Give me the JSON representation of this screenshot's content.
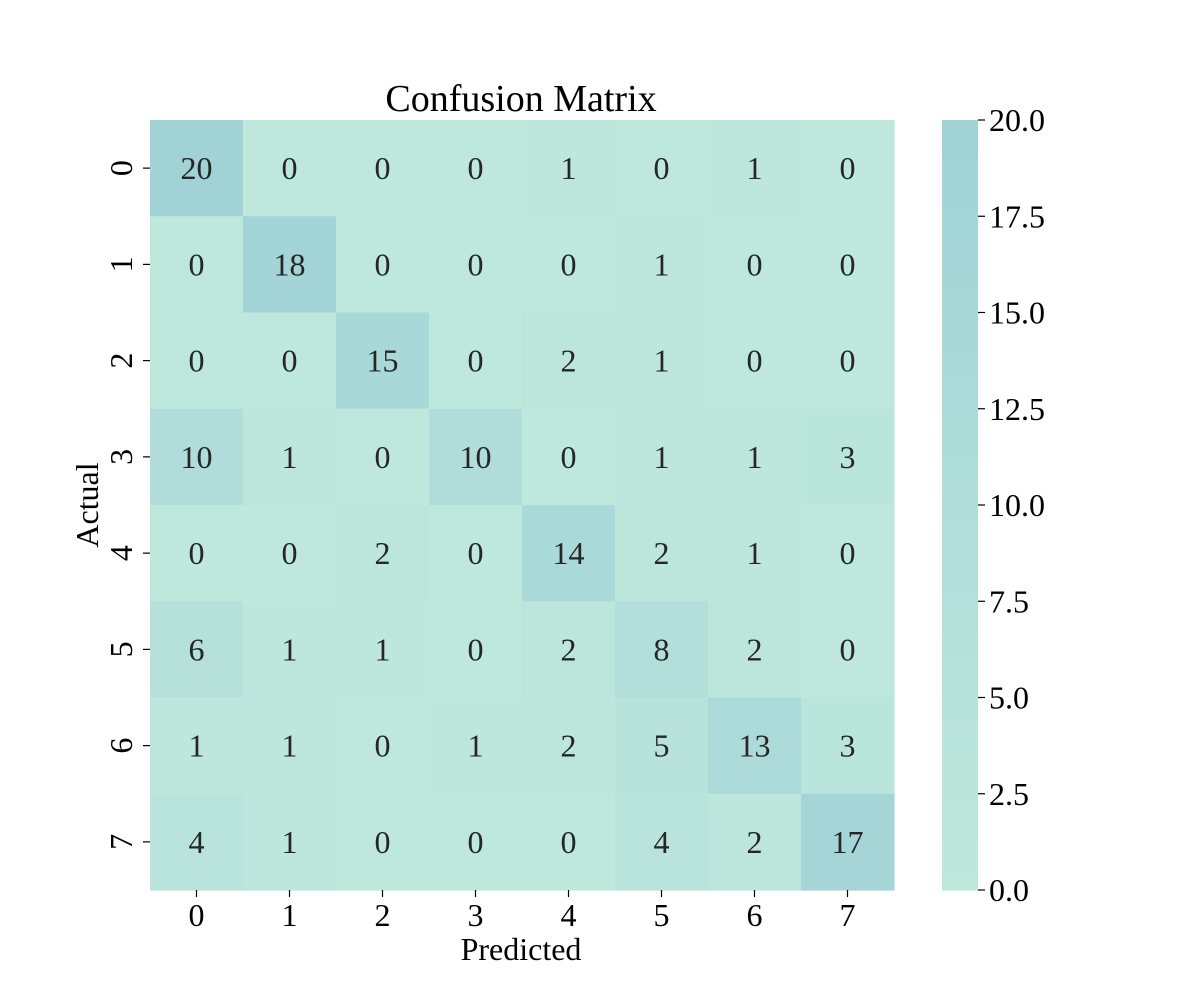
{
  "chart_data": {
    "type": "heatmap",
    "title": "Confusion Matrix",
    "xlabel": "Predicted",
    "ylabel": "Actual",
    "x_categories": [
      "0",
      "1",
      "2",
      "3",
      "4",
      "5",
      "6",
      "7"
    ],
    "y_categories": [
      "0",
      "1",
      "2",
      "3",
      "4",
      "5",
      "6",
      "7"
    ],
    "values": [
      [
        20,
        0,
        0,
        0,
        1,
        0,
        1,
        0
      ],
      [
        0,
        18,
        0,
        0,
        0,
        1,
        0,
        0
      ],
      [
        0,
        0,
        15,
        0,
        2,
        1,
        0,
        0
      ],
      [
        10,
        1,
        0,
        10,
        0,
        1,
        1,
        3
      ],
      [
        0,
        0,
        2,
        0,
        14,
        2,
        1,
        0
      ],
      [
        6,
        1,
        1,
        0,
        2,
        8,
        2,
        0
      ],
      [
        1,
        1,
        0,
        1,
        2,
        5,
        13,
        3
      ],
      [
        4,
        1,
        0,
        0,
        0,
        4,
        2,
        17
      ]
    ],
    "colorbar": {
      "min": 0,
      "max": 20,
      "ticks": [
        "0.0",
        "2.5",
        "5.0",
        "7.5",
        "10.0",
        "12.5",
        "15.0",
        "17.5",
        "20.0"
      ]
    },
    "colors": {
      "low": "#bfe8dc",
      "high": "#a0d2d6",
      "text": "#262626"
    }
  }
}
